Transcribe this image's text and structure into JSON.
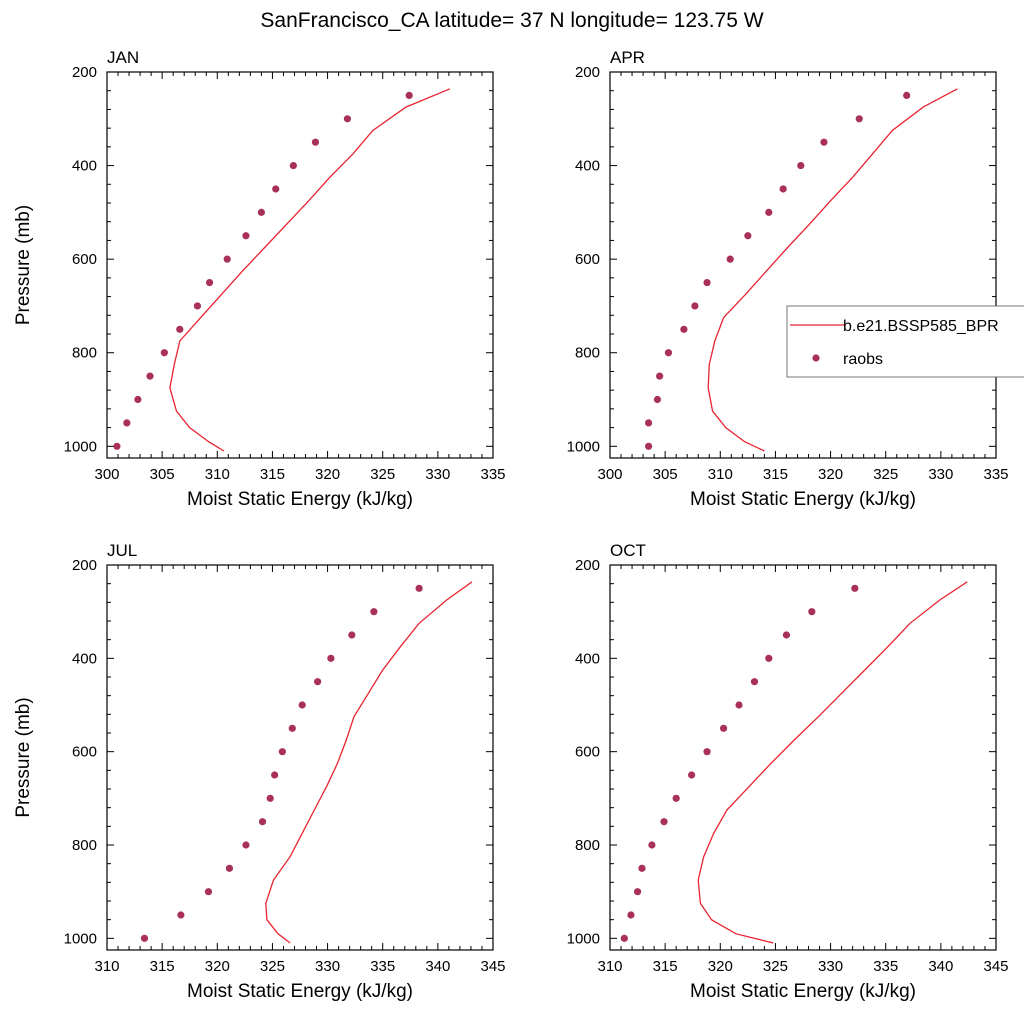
{
  "figure": {
    "title": "SanFrancisco_CA  latitude= 37 N longitude= 123.75 W"
  },
  "colors": {
    "model_line": "#e8232f",
    "raobs_marker": "#a8305a",
    "axes": "#000000"
  },
  "legend": {
    "placement": "right-middle, attached to top-right panel (clipped at image edge)",
    "entries": [
      {
        "label": "b.e21.BSSP585_BPR",
        "style": "line"
      },
      {
        "label": "raobs",
        "style": "marker"
      }
    ]
  },
  "chart_data": [
    {
      "type": "line+scatter",
      "title": "JAN",
      "xlabel": "Moist Static Energy (kJ/kg)",
      "ylabel": "Pressure (mb)",
      "xlim": [
        300,
        335
      ],
      "ylim": [
        200,
        1025
      ],
      "y_reversed": true,
      "xticks": [
        300,
        305,
        310,
        315,
        320,
        325,
        330,
        335
      ],
      "yticks": [
        200,
        400,
        600,
        800,
        1000
      ],
      "xtick_labels": [
        "300",
        "305",
        "310",
        "315",
        "320",
        "325",
        "330",
        "335"
      ],
      "ytick_labels": [
        "200",
        "400",
        "600",
        "800",
        "1000"
      ],
      "series": [
        {
          "name": "b.e21.BSSP585_BPR",
          "style": "line",
          "points": [
            [
              331.1,
              236
            ],
            [
              327.1,
              275
            ],
            [
              324.1,
              325
            ],
            [
              322.3,
              375
            ],
            [
              320.2,
              425
            ],
            [
              318.3,
              475
            ],
            [
              316.3,
              525
            ],
            [
              314.3,
              575
            ],
            [
              312.3,
              625
            ],
            [
              310.4,
              675
            ],
            [
              308.5,
              725
            ],
            [
              306.6,
              775
            ],
            [
              306.1,
              825
            ],
            [
              305.7,
              875
            ],
            [
              306.3,
              925
            ],
            [
              307.5,
              960
            ],
            [
              309.2,
              990
            ],
            [
              310.6,
              1010
            ]
          ]
        },
        {
          "name": "raobs",
          "style": "marker",
          "points": [
            [
              327.4,
              250
            ],
            [
              321.8,
              300
            ],
            [
              318.9,
              350
            ],
            [
              316.9,
              400
            ],
            [
              315.3,
              450
            ],
            [
              314.0,
              500
            ],
            [
              312.6,
              550
            ],
            [
              310.9,
              600
            ],
            [
              309.3,
              650
            ],
            [
              308.2,
              700
            ],
            [
              306.6,
              750
            ],
            [
              305.2,
              800
            ],
            [
              303.9,
              850
            ],
            [
              302.8,
              900
            ],
            [
              301.8,
              950
            ],
            [
              300.9,
              1000
            ]
          ]
        }
      ]
    },
    {
      "type": "line+scatter",
      "title": "APR",
      "xlabel": "Moist Static Energy (kJ/kg)",
      "ylabel": "",
      "xlim": [
        300,
        335
      ],
      "ylim": [
        200,
        1025
      ],
      "y_reversed": true,
      "xticks": [
        300,
        305,
        310,
        315,
        320,
        325,
        330,
        335
      ],
      "yticks": [
        200,
        400,
        600,
        800,
        1000
      ],
      "xtick_labels": [
        "300",
        "305",
        "310",
        "315",
        "320",
        "325",
        "330",
        "335"
      ],
      "ytick_labels": [
        "200",
        "400",
        "600",
        "800",
        "1000"
      ],
      "series": [
        {
          "name": "b.e21.BSSP585_BPR",
          "style": "line",
          "points": [
            [
              331.5,
              236
            ],
            [
              328.4,
              275
            ],
            [
              325.6,
              325
            ],
            [
              323.8,
              375
            ],
            [
              322.0,
              425
            ],
            [
              320.0,
              475
            ],
            [
              318.1,
              525
            ],
            [
              316.1,
              575
            ],
            [
              314.2,
              625
            ],
            [
              312.3,
              675
            ],
            [
              310.3,
              725
            ],
            [
              309.5,
              775
            ],
            [
              309.0,
              825
            ],
            [
              308.9,
              875
            ],
            [
              309.3,
              925
            ],
            [
              310.5,
              960
            ],
            [
              312.2,
              990
            ],
            [
              314.0,
              1010
            ]
          ]
        },
        {
          "name": "raobs",
          "style": "marker",
          "points": [
            [
              326.9,
              250
            ],
            [
              322.6,
              300
            ],
            [
              319.4,
              350
            ],
            [
              317.3,
              400
            ],
            [
              315.7,
              450
            ],
            [
              314.4,
              500
            ],
            [
              312.5,
              550
            ],
            [
              310.9,
              600
            ],
            [
              308.8,
              650
            ],
            [
              307.7,
              700
            ],
            [
              306.7,
              750
            ],
            [
              305.3,
              800
            ],
            [
              304.5,
              850
            ],
            [
              304.3,
              900
            ],
            [
              303.5,
              950
            ],
            [
              303.5,
              1000
            ]
          ]
        }
      ]
    },
    {
      "type": "line+scatter",
      "title": "JUL",
      "xlabel": "Moist Static Energy (kJ/kg)",
      "ylabel": "Pressure (mb)",
      "xlim": [
        310,
        345
      ],
      "ylim": [
        200,
        1025
      ],
      "y_reversed": true,
      "xticks": [
        310,
        315,
        320,
        325,
        330,
        335,
        340,
        345
      ],
      "yticks": [
        200,
        400,
        600,
        800,
        1000
      ],
      "xtick_labels": [
        "310",
        "315",
        "320",
        "325",
        "330",
        "335",
        "340",
        "345"
      ],
      "ytick_labels": [
        "200",
        "400",
        "600",
        "800",
        "1000"
      ],
      "series": [
        {
          "name": "b.e21.BSSP585_BPR",
          "style": "line",
          "points": [
            [
              343.1,
              236
            ],
            [
              340.8,
              275
            ],
            [
              338.3,
              325
            ],
            [
              336.6,
              375
            ],
            [
              335.0,
              425
            ],
            [
              333.7,
              475
            ],
            [
              332.4,
              525
            ],
            [
              331.7,
              575
            ],
            [
              330.9,
              625
            ],
            [
              329.9,
              675
            ],
            [
              328.8,
              725
            ],
            [
              327.7,
              775
            ],
            [
              326.6,
              825
            ],
            [
              325.1,
              875
            ],
            [
              324.4,
              925
            ],
            [
              324.5,
              960
            ],
            [
              325.5,
              990
            ],
            [
              326.6,
              1010
            ]
          ]
        },
        {
          "name": "raobs",
          "style": "marker",
          "points": [
            [
              338.3,
              250
            ],
            [
              334.2,
              300
            ],
            [
              332.2,
              350
            ],
            [
              330.3,
              400
            ],
            [
              329.1,
              450
            ],
            [
              327.7,
              500
            ],
            [
              326.8,
              550
            ],
            [
              325.9,
              600
            ],
            [
              325.2,
              650
            ],
            [
              324.8,
              700
            ],
            [
              324.1,
              750
            ],
            [
              322.6,
              800
            ],
            [
              321.1,
              850
            ],
            [
              319.2,
              900
            ],
            [
              316.7,
              950
            ],
            [
              313.4,
              1000
            ]
          ]
        }
      ]
    },
    {
      "type": "line+scatter",
      "title": "OCT",
      "xlabel": "Moist Static Energy (kJ/kg)",
      "ylabel": "",
      "xlim": [
        310,
        345
      ],
      "ylim": [
        200,
        1025
      ],
      "y_reversed": true,
      "xticks": [
        310,
        315,
        320,
        325,
        330,
        335,
        340,
        345
      ],
      "yticks": [
        200,
        400,
        600,
        800,
        1000
      ],
      "xtick_labels": [
        "310",
        "315",
        "320",
        "325",
        "330",
        "335",
        "340",
        "345"
      ],
      "ytick_labels": [
        "200",
        "400",
        "600",
        "800",
        "1000"
      ],
      "series": [
        {
          "name": "b.e21.BSSP585_BPR",
          "style": "line",
          "points": [
            [
              342.4,
              236
            ],
            [
              339.9,
              275
            ],
            [
              337.2,
              325
            ],
            [
              335.2,
              375
            ],
            [
              333.1,
              425
            ],
            [
              331.0,
              475
            ],
            [
              328.9,
              525
            ],
            [
              326.7,
              575
            ],
            [
              324.6,
              625
            ],
            [
              322.6,
              675
            ],
            [
              320.6,
              725
            ],
            [
              319.4,
              775
            ],
            [
              318.5,
              825
            ],
            [
              318.0,
              875
            ],
            [
              318.2,
              925
            ],
            [
              319.2,
              960
            ],
            [
              321.4,
              990
            ],
            [
              324.8,
              1010
            ]
          ]
        },
        {
          "name": "raobs",
          "style": "marker",
          "points": [
            [
              332.2,
              250
            ],
            [
              328.3,
              300
            ],
            [
              326.0,
              350
            ],
            [
              324.4,
              400
            ],
            [
              323.1,
              450
            ],
            [
              321.7,
              500
            ],
            [
              320.3,
              550
            ],
            [
              318.8,
              600
            ],
            [
              317.4,
              650
            ],
            [
              316.0,
              700
            ],
            [
              314.9,
              750
            ],
            [
              313.8,
              800
            ],
            [
              312.9,
              850
            ],
            [
              312.5,
              900
            ],
            [
              311.9,
              950
            ],
            [
              311.3,
              1000
            ]
          ]
        }
      ]
    }
  ]
}
